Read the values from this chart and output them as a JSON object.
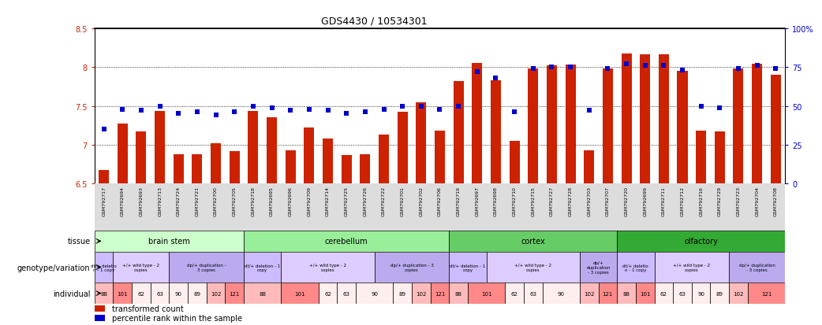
{
  "title": "GDS4430 / 10534301",
  "samples": [
    "GSM792717",
    "GSM792694",
    "GSM792693",
    "GSM792713",
    "GSM792724",
    "GSM792721",
    "GSM792700",
    "GSM792705",
    "GSM792718",
    "GSM792695",
    "GSM792696",
    "GSM792709",
    "GSM792714",
    "GSM792725",
    "GSM792726",
    "GSM792722",
    "GSM792701",
    "GSM792702",
    "GSM792706",
    "GSM792719",
    "GSM792697",
    "GSM792698",
    "GSM792710",
    "GSM792715",
    "GSM792727",
    "GSM792728",
    "GSM792703",
    "GSM792707",
    "GSM792720",
    "GSM792699",
    "GSM792711",
    "GSM792712",
    "GSM792716",
    "GSM792729",
    "GSM792723",
    "GSM792704",
    "GSM792708"
  ],
  "red_values": [
    6.67,
    7.27,
    7.17,
    7.43,
    6.88,
    6.88,
    7.02,
    6.92,
    7.43,
    7.35,
    6.93,
    7.22,
    7.08,
    6.87,
    6.88,
    7.13,
    7.42,
    7.55,
    7.18,
    7.82,
    8.06,
    7.83,
    7.05,
    7.98,
    8.02,
    8.03,
    6.93,
    7.98,
    8.18,
    8.17,
    8.17,
    7.95,
    7.18,
    7.17,
    7.98,
    8.05,
    7.9
  ],
  "blue_values": [
    35,
    48,
    47,
    50,
    45,
    46,
    44,
    46,
    50,
    49,
    47,
    48,
    47,
    45,
    46,
    48,
    50,
    50,
    48,
    50,
    72,
    68,
    46,
    74,
    75,
    75,
    47,
    74,
    77,
    76,
    76,
    73,
    50,
    49,
    74,
    76,
    74
  ],
  "ylim_left": [
    6.5,
    8.5
  ],
  "ylim_right": [
    0,
    100
  ],
  "yticks_left": [
    6.5,
    7.0,
    7.5,
    8.0,
    8.5
  ],
  "yticks_right": [
    0,
    25,
    50,
    75,
    100
  ],
  "ytick_labels_right": [
    "0",
    "25",
    "50",
    "75",
    "100%"
  ],
  "ytick_labels_left": [
    "6.5",
    "7",
    "7.5",
    "8",
    "8.5"
  ],
  "hgrid_lines": [
    7.0,
    7.5,
    8.0
  ],
  "tissues": [
    {
      "name": "brain stem",
      "start": 0,
      "end": 7,
      "color": "#ccffcc"
    },
    {
      "name": "cerebellum",
      "start": 8,
      "end": 18,
      "color": "#99ee99"
    },
    {
      "name": "cortex",
      "start": 19,
      "end": 27,
      "color": "#66cc66"
    },
    {
      "name": "olfactory",
      "start": 28,
      "end": 36,
      "color": "#33aa33"
    }
  ],
  "genotypes": [
    {
      "label": "dt/+ deletio\nn - 1 copy",
      "start": 0,
      "end": 0,
      "color": "#ccbbff"
    },
    {
      "label": "+/+ wild type - 2\ncopies",
      "start": 1,
      "end": 3,
      "color": "#ddccff"
    },
    {
      "label": "dp/+ duplication -\n3 copies",
      "start": 4,
      "end": 7,
      "color": "#bbaaee"
    },
    {
      "label": "dt/+ deletion - 1\ncopy",
      "start": 8,
      "end": 9,
      "color": "#ccbbff"
    },
    {
      "label": "+/+ wild type - 2\ncopies",
      "start": 10,
      "end": 14,
      "color": "#ddccff"
    },
    {
      "label": "dp/+ duplication - 3\ncopies",
      "start": 15,
      "end": 18,
      "color": "#bbaaee"
    },
    {
      "label": "dt/+ deletion - 1\ncopy",
      "start": 19,
      "end": 20,
      "color": "#ccbbff"
    },
    {
      "label": "+/+ wild type - 2\ncopies",
      "start": 21,
      "end": 25,
      "color": "#ddccff"
    },
    {
      "label": "dp/+\nduplication\n- 3 copies",
      "start": 26,
      "end": 27,
      "color": "#bbaaee"
    },
    {
      "label": "dt/+ deletio\nn - 1 copy",
      "start": 28,
      "end": 29,
      "color": "#ccbbff"
    },
    {
      "label": "+/+ wild type - 2\ncopies",
      "start": 30,
      "end": 33,
      "color": "#ddccff"
    },
    {
      "label": "dp/+ duplication\n- 3 copies",
      "start": 34,
      "end": 36,
      "color": "#bbaaee"
    }
  ],
  "individuals": [
    {
      "label": "88",
      "start": 0,
      "end": 0,
      "color": "#ffbbbb"
    },
    {
      "label": "101",
      "start": 1,
      "end": 1,
      "color": "#ff8888"
    },
    {
      "label": "62",
      "start": 2,
      "end": 2,
      "color": "#ffeeee"
    },
    {
      "label": "63",
      "start": 3,
      "end": 3,
      "color": "#ffeeee"
    },
    {
      "label": "90",
      "start": 4,
      "end": 4,
      "color": "#ffeeee"
    },
    {
      "label": "89",
      "start": 5,
      "end": 5,
      "color": "#ffeeee"
    },
    {
      "label": "102",
      "start": 6,
      "end": 6,
      "color": "#ffbbbb"
    },
    {
      "label": "121",
      "start": 7,
      "end": 7,
      "color": "#ff8888"
    },
    {
      "label": "88",
      "start": 8,
      "end": 9,
      "color": "#ffbbbb"
    },
    {
      "label": "101",
      "start": 10,
      "end": 11,
      "color": "#ff8888"
    },
    {
      "label": "62",
      "start": 12,
      "end": 12,
      "color": "#ffeeee"
    },
    {
      "label": "63",
      "start": 13,
      "end": 13,
      "color": "#ffeeee"
    },
    {
      "label": "90",
      "start": 14,
      "end": 15,
      "color": "#ffeeee"
    },
    {
      "label": "89",
      "start": 16,
      "end": 16,
      "color": "#ffeeee"
    },
    {
      "label": "102",
      "start": 17,
      "end": 17,
      "color": "#ffbbbb"
    },
    {
      "label": "121",
      "start": 18,
      "end": 18,
      "color": "#ff8888"
    },
    {
      "label": "88",
      "start": 19,
      "end": 19,
      "color": "#ffbbbb"
    },
    {
      "label": "101",
      "start": 20,
      "end": 21,
      "color": "#ff8888"
    },
    {
      "label": "62",
      "start": 22,
      "end": 22,
      "color": "#ffeeee"
    },
    {
      "label": "63",
      "start": 23,
      "end": 23,
      "color": "#ffeeee"
    },
    {
      "label": "90",
      "start": 24,
      "end": 25,
      "color": "#ffeeee"
    },
    {
      "label": "102",
      "start": 26,
      "end": 26,
      "color": "#ffbbbb"
    },
    {
      "label": "121",
      "start": 27,
      "end": 27,
      "color": "#ff8888"
    },
    {
      "label": "88",
      "start": 28,
      "end": 28,
      "color": "#ffbbbb"
    },
    {
      "label": "101",
      "start": 29,
      "end": 29,
      "color": "#ff8888"
    },
    {
      "label": "62",
      "start": 30,
      "end": 30,
      "color": "#ffeeee"
    },
    {
      "label": "63",
      "start": 31,
      "end": 31,
      "color": "#ffeeee"
    },
    {
      "label": "90",
      "start": 32,
      "end": 32,
      "color": "#ffeeee"
    },
    {
      "label": "89",
      "start": 33,
      "end": 33,
      "color": "#ffeeee"
    },
    {
      "label": "102",
      "start": 34,
      "end": 34,
      "color": "#ffbbbb"
    },
    {
      "label": "121",
      "start": 35,
      "end": 36,
      "color": "#ff8888"
    }
  ],
  "bar_color": "#cc2200",
  "marker_color": "#0000cc",
  "bar_width": 0.55,
  "marker_size": 18
}
